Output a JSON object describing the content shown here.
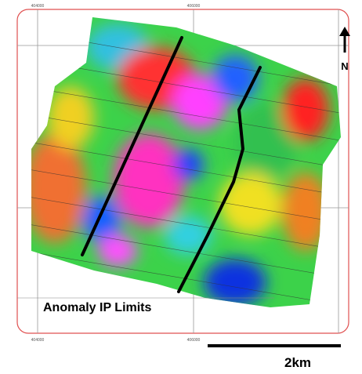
{
  "labels": {
    "legend": "Anomaly IP Limits",
    "north": "N",
    "scale": "2km"
  },
  "grid_labels": {
    "top": [
      "404000",
      "406000"
    ],
    "bottom": [
      "404000",
      "406000"
    ]
  }
}
